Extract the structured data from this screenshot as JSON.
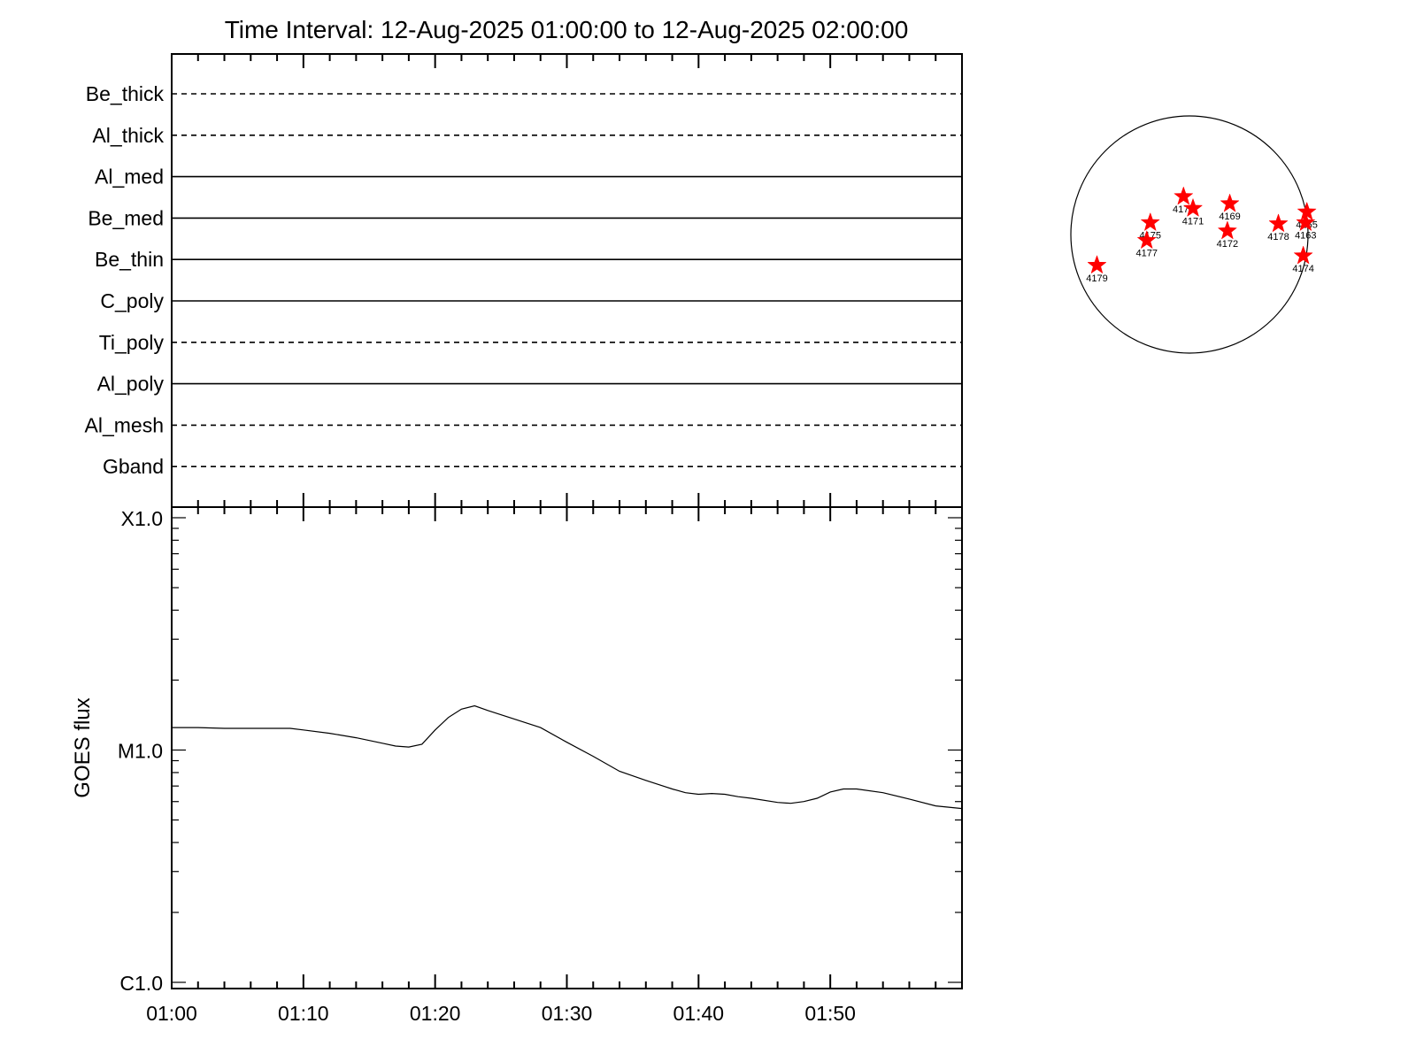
{
  "chart_data": [
    {
      "type": "timeline",
      "title": "Time Interval: 12-Aug-2025 01:00:00 to 12-Aug-2025 02:00:00",
      "xlim_minutes": [
        0,
        60
      ],
      "filters": [
        {
          "name": "Be_thick",
          "style": "dashed"
        },
        {
          "name": "Al_thick",
          "style": "dashed"
        },
        {
          "name": "Al_med",
          "style": "solid"
        },
        {
          "name": "Be_med",
          "style": "solid"
        },
        {
          "name": "Be_thin",
          "style": "solid"
        },
        {
          "name": "C_poly",
          "style": "solid"
        },
        {
          "name": "Ti_poly",
          "style": "dashed"
        },
        {
          "name": "Al_poly",
          "style": "solid"
        },
        {
          "name": "Al_mesh",
          "style": "dashed"
        },
        {
          "name": "Gband",
          "style": "dashed"
        }
      ]
    },
    {
      "type": "line",
      "ylabel": "GOES flux",
      "y_scale": "log",
      "ylim": [
        1e-06,
        0.0001
      ],
      "yticks": [
        {
          "label": "C1.0",
          "value": 1e-06
        },
        {
          "label": "M1.0",
          "value": 1e-05
        },
        {
          "label": "X1.0",
          "value": 0.0001
        }
      ],
      "xticks": [
        "01:00",
        "01:10",
        "01:20",
        "01:30",
        "01:40",
        "01:50"
      ],
      "series": [
        {
          "x_minutes": [
            0,
            2,
            4,
            6,
            8,
            9,
            10,
            12,
            14,
            16,
            17,
            18,
            19,
            20,
            21,
            22,
            23,
            24,
            26,
            28,
            30,
            32,
            34,
            36,
            38,
            39,
            40,
            41,
            42,
            43,
            44,
            46,
            47,
            48,
            49,
            50,
            51,
            52,
            54,
            56,
            58,
            60
          ],
          "y": [
            1.25e-05,
            1.25e-05,
            1.24e-05,
            1.24e-05,
            1.24e-05,
            1.24e-05,
            1.22e-05,
            1.18e-05,
            1.13e-05,
            1.07e-05,
            1.04e-05,
            1.03e-05,
            1.06e-05,
            1.22e-05,
            1.38e-05,
            1.5e-05,
            1.55e-05,
            1.48e-05,
            1.36e-05,
            1.25e-05,
            1.08e-05,
            9.4e-06,
            8.1e-06,
            7.4e-06,
            6.8e-06,
            6.55e-06,
            6.45e-06,
            6.5e-06,
            6.45e-06,
            6.3e-06,
            6.2e-06,
            5.95e-06,
            5.9e-06,
            6e-06,
            6.2e-06,
            6.6e-06,
            6.8e-06,
            6.8e-06,
            6.55e-06,
            6.15e-06,
            5.75e-06,
            5.6e-06
          ]
        }
      ]
    },
    {
      "type": "scatter",
      "points": [
        {
          "label": "4179",
          "x": -0.78,
          "y": -0.26
        },
        {
          "label": "4175",
          "x": -0.33,
          "y": 0.1
        },
        {
          "label": "4177",
          "x": -0.36,
          "y": -0.05
        },
        {
          "label": "4176",
          "x": -0.05,
          "y": 0.32
        },
        {
          "label": "4171",
          "x": 0.03,
          "y": 0.22
        },
        {
          "label": "4169",
          "x": 0.34,
          "y": 0.26
        },
        {
          "label": "4172",
          "x": 0.32,
          "y": 0.03
        },
        {
          "label": "4178",
          "x": 0.75,
          "y": 0.09
        },
        {
          "label": "4165",
          "x": 0.99,
          "y": 0.19
        },
        {
          "label": "4163",
          "x": 0.98,
          "y": 0.1
        },
        {
          "label": "4174",
          "x": 0.96,
          "y": -0.18
        }
      ],
      "marker_color": "#ff0000"
    }
  ]
}
